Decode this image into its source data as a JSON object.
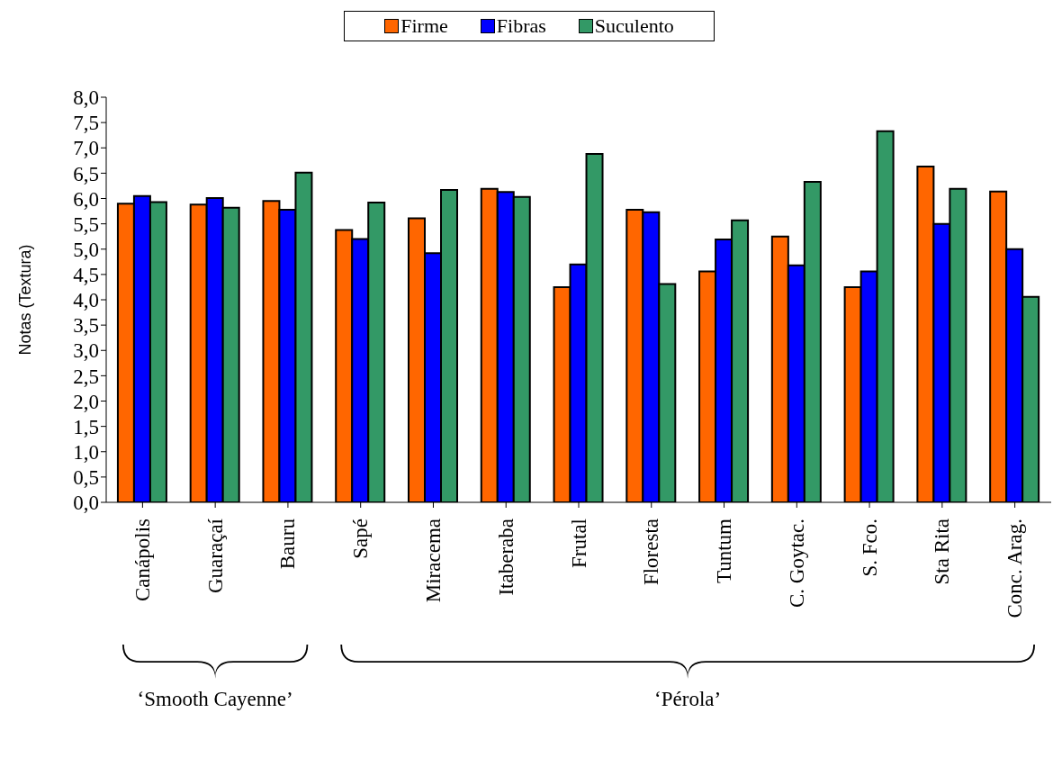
{
  "chart_data": {
    "type": "bar",
    "ylabel": "Notas (Textura)",
    "categories": [
      "Canápolis",
      "Guaraçaí",
      "Bauru",
      "Sapé",
      "Miracema",
      "Itaberaba",
      "Frutal",
      "Floresta",
      "Tuntum",
      "C. Goytac.",
      "S. Fco.",
      "Sta Rita",
      "Conc. Arag."
    ],
    "series": [
      {
        "name": "Firme",
        "color": "#ff6600",
        "values": [
          5.9,
          5.88,
          5.95,
          5.38,
          5.61,
          6.19,
          4.25,
          5.78,
          4.56,
          5.25,
          4.25,
          6.63,
          6.14
        ]
      },
      {
        "name": "Fibras",
        "color": "#0000ff",
        "values": [
          6.05,
          6.01,
          5.78,
          5.2,
          4.92,
          6.13,
          4.7,
          5.73,
          5.19,
          4.68,
          4.56,
          5.5,
          5.0
        ]
      },
      {
        "name": "Suculento",
        "color": "#339966",
        "values": [
          5.93,
          5.82,
          6.51,
          5.92,
          6.17,
          6.03,
          6.88,
          4.31,
          5.57,
          6.33,
          7.33,
          6.19,
          4.06
        ]
      }
    ],
    "ylim": [
      0,
      8
    ],
    "yticks": [
      {
        "value": 0,
        "label": "0,0"
      },
      {
        "value": 0.5,
        "label": "0,5"
      },
      {
        "value": 1,
        "label": "1,0"
      },
      {
        "value": 1.5,
        "label": "1,5"
      },
      {
        "value": 2,
        "label": "2,0"
      },
      {
        "value": 2.5,
        "label": "2,5"
      },
      {
        "value": 3,
        "label": "3,0"
      },
      {
        "value": 3.5,
        "label": "3,5"
      },
      {
        "value": 4,
        "label": "4,0"
      },
      {
        "value": 4.5,
        "label": "4,5"
      },
      {
        "value": 5,
        "label": "5,0"
      },
      {
        "value": 5.5,
        "label": "5,5"
      },
      {
        "value": 6,
        "label": "6,0"
      },
      {
        "value": 6.5,
        "label": "6,5"
      },
      {
        "value": 7,
        "label": "7,0"
      },
      {
        "value": 7.5,
        "label": "7,5"
      },
      {
        "value": 8,
        "label": "8,0"
      }
    ],
    "annotations": [
      "‘Smooth Cayenne’",
      "‘Pérola’"
    ],
    "legend": "top",
    "grid": false
  }
}
